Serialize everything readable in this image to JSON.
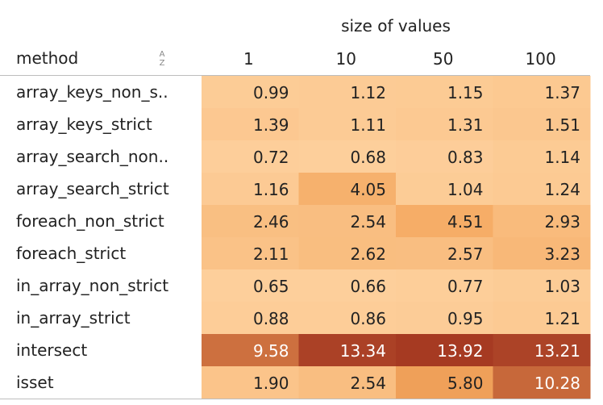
{
  "header": {
    "columns_title": "size of values",
    "row_title": "method",
    "sort_icon": "sort-alpha-icon",
    "sort_icon_glyph_top": "A",
    "sort_icon_glyph_bottom": "Z"
  },
  "chart_data": {
    "type": "heatmap",
    "x_title": "size of values",
    "y_title": "method",
    "columns": [
      "1",
      "10",
      "50",
      "100"
    ],
    "rows": [
      {
        "label": "array_keys_non_s..",
        "values": [
          "0.99",
          "1.12",
          "1.15",
          "1.37"
        ]
      },
      {
        "label": "array_keys_strict",
        "values": [
          "1.39",
          "1.11",
          "1.31",
          "1.51"
        ]
      },
      {
        "label": "array_search_non..",
        "values": [
          "0.72",
          "0.68",
          "0.83",
          "1.14"
        ]
      },
      {
        "label": "array_search_strict",
        "values": [
          "1.16",
          "4.05",
          "1.04",
          "1.24"
        ]
      },
      {
        "label": "foreach_non_strict",
        "values": [
          "2.46",
          "2.54",
          "4.51",
          "2.93"
        ]
      },
      {
        "label": "foreach_strict",
        "values": [
          "2.11",
          "2.62",
          "2.57",
          "3.23"
        ]
      },
      {
        "label": "in_array_non_strict",
        "values": [
          "0.65",
          "0.66",
          "0.77",
          "1.03"
        ]
      },
      {
        "label": "in_array_strict",
        "values": [
          "0.88",
          "0.86",
          "0.95",
          "1.21"
        ]
      },
      {
        "label": "intersect",
        "values": [
          "9.58",
          "13.34",
          "13.92",
          "13.21"
        ]
      },
      {
        "label": "isset",
        "values": [
          "1.90",
          "2.54",
          "5.80",
          "10.28"
        ]
      }
    ],
    "color_range": {
      "min": 0.65,
      "max": 13.92,
      "low_color": "#fdcf9b",
      "mid_color": "#f4a65c",
      "high_color": "#a63a22"
    },
    "text_colors": {
      "dark": "#222222",
      "light": "#ffffff"
    }
  }
}
